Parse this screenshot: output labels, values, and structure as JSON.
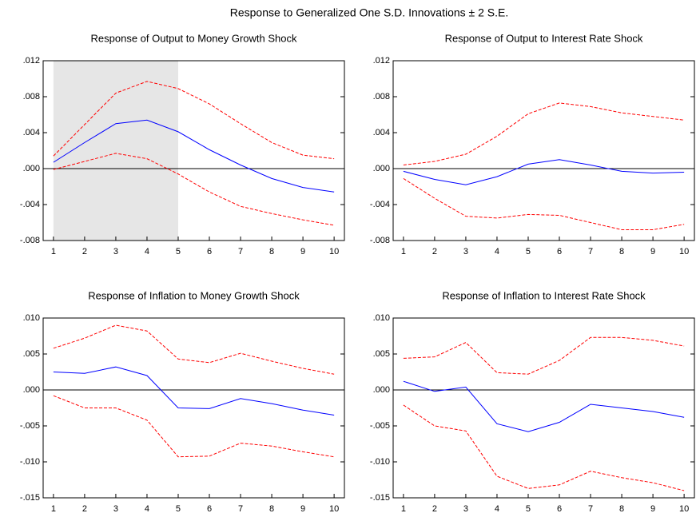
{
  "title": "Response to Generalized One S.D. Innovations ± 2 S.E.",
  "chart_data": [
    {
      "type": "line",
      "title": "Response of Output to Money Growth Shock",
      "x": [
        1,
        2,
        3,
        4,
        5,
        6,
        7,
        8,
        9,
        10
      ],
      "xlim": [
        0.67,
        10.33
      ],
      "xticks": [
        1,
        2,
        3,
        4,
        5,
        6,
        7,
        8,
        9,
        10
      ],
      "ylim": [
        -0.008,
        0.012
      ],
      "yticks": [
        {
          "value": -0.008,
          "label": "-.008"
        },
        {
          "value": -0.004,
          "label": "-.004"
        },
        {
          "value": 0,
          "label": ".000"
        },
        {
          "value": 0.004,
          "label": ".004"
        },
        {
          "value": 0.008,
          "label": ".008"
        },
        {
          "value": 0.012,
          "label": ".012"
        }
      ],
      "zero_line": true,
      "shaded_x": [
        1,
        5
      ],
      "shade_color": "#e6e6e6",
      "series": [
        {
          "color": "#0000ff",
          "style": "solid",
          "values": [
            0.0007,
            0.0029,
            0.005,
            0.0054,
            0.0041,
            0.0021,
            0.0004,
            -0.0011,
            -0.0021,
            -0.0026
          ]
        },
        {
          "color": "#ff0000",
          "style": "dashed",
          "values": [
            0.0014,
            0.0049,
            0.0084,
            0.0097,
            0.0089,
            0.0072,
            0.005,
            0.0029,
            0.0015,
            0.0011
          ]
        },
        {
          "color": "#ff0000",
          "style": "dashed",
          "values": [
            -0.0001,
            0.0008,
            0.0017,
            0.0011,
            -0.0006,
            -0.0026,
            -0.0042,
            -0.005,
            -0.0057,
            -0.0063
          ]
        }
      ]
    },
    {
      "type": "line",
      "title": "Response of Output to Interest Rate Shock",
      "x": [
        1,
        2,
        3,
        4,
        5,
        6,
        7,
        8,
        9,
        10
      ],
      "xlim": [
        0.67,
        10.33
      ],
      "xticks": [
        1,
        2,
        3,
        4,
        5,
        6,
        7,
        8,
        9,
        10
      ],
      "ylim": [
        -0.008,
        0.012
      ],
      "yticks": [
        {
          "value": -0.008,
          "label": "-.008"
        },
        {
          "value": -0.004,
          "label": "-.004"
        },
        {
          "value": 0,
          "label": ".000"
        },
        {
          "value": 0.004,
          "label": ".004"
        },
        {
          "value": 0.008,
          "label": ".008"
        },
        {
          "value": 0.012,
          "label": ".012"
        }
      ],
      "zero_line": true,
      "series": [
        {
          "color": "#0000ff",
          "style": "solid",
          "values": [
            -0.0003,
            -0.0012,
            -0.0018,
            -0.0009,
            0.0005,
            0.001,
            0.0004,
            -0.0003,
            -0.0005,
            -0.0004
          ]
        },
        {
          "color": "#ff0000",
          "style": "dashed",
          "values": [
            0.0004,
            0.0008,
            0.0016,
            0.0036,
            0.0061,
            0.0073,
            0.0069,
            0.0062,
            0.0058,
            0.0054
          ]
        },
        {
          "color": "#ff0000",
          "style": "dashed",
          "values": [
            -0.0011,
            -0.0033,
            -0.0053,
            -0.0055,
            -0.0051,
            -0.0052,
            -0.006,
            -0.0068,
            -0.0068,
            -0.0062
          ]
        }
      ]
    },
    {
      "type": "line",
      "title": "Response of Inflation to Money Growth Shock",
      "x": [
        1,
        2,
        3,
        4,
        5,
        6,
        7,
        8,
        9,
        10
      ],
      "xlim": [
        0.67,
        10.33
      ],
      "xticks": [
        1,
        2,
        3,
        4,
        5,
        6,
        7,
        8,
        9,
        10
      ],
      "ylim": [
        -0.015,
        0.01
      ],
      "yticks": [
        {
          "value": -0.015,
          "label": "-.015"
        },
        {
          "value": -0.01,
          "label": "-.010"
        },
        {
          "value": -0.005,
          "label": "-.005"
        },
        {
          "value": 0,
          "label": ".000"
        },
        {
          "value": 0.005,
          "label": ".005"
        },
        {
          "value": 0.01,
          "label": ".010"
        }
      ],
      "zero_line": true,
      "series": [
        {
          "color": "#0000ff",
          "style": "solid",
          "values": [
            0.0025,
            0.0023,
            0.0032,
            0.002,
            -0.0025,
            -0.0026,
            -0.0012,
            -0.0019,
            -0.0028,
            -0.0035
          ]
        },
        {
          "color": "#ff0000",
          "style": "dashed",
          "values": [
            0.0058,
            0.0072,
            0.009,
            0.0082,
            0.0043,
            0.0038,
            0.0051,
            0.004,
            0.003,
            0.0022
          ]
        },
        {
          "color": "#ff0000",
          "style": "dashed",
          "values": [
            -0.0008,
            -0.0025,
            -0.0025,
            -0.0042,
            -0.0093,
            -0.0092,
            -0.0074,
            -0.0078,
            -0.0086,
            -0.0093
          ]
        }
      ]
    },
    {
      "type": "line",
      "title": "Response of Inflation to Interest Rate Shock",
      "x": [
        1,
        2,
        3,
        4,
        5,
        6,
        7,
        8,
        9,
        10
      ],
      "xlim": [
        0.67,
        10.33
      ],
      "xticks": [
        1,
        2,
        3,
        4,
        5,
        6,
        7,
        8,
        9,
        10
      ],
      "ylim": [
        -0.015,
        0.01
      ],
      "yticks": [
        {
          "value": -0.015,
          "label": "-.015"
        },
        {
          "value": -0.01,
          "label": "-.010"
        },
        {
          "value": -0.005,
          "label": "-.005"
        },
        {
          "value": 0,
          "label": ".000"
        },
        {
          "value": 0.005,
          "label": ".005"
        },
        {
          "value": 0.01,
          "label": ".010"
        }
      ],
      "zero_line": true,
      "series": [
        {
          "color": "#0000ff",
          "style": "solid",
          "values": [
            0.0012,
            -0.0002,
            0.0004,
            -0.0047,
            -0.0058,
            -0.0045,
            -0.002,
            -0.0025,
            -0.003,
            -0.0038
          ]
        },
        {
          "color": "#ff0000",
          "style": "dashed",
          "values": [
            0.0044,
            0.0046,
            0.0066,
            0.0024,
            0.0022,
            0.0041,
            0.0073,
            0.0073,
            0.0069,
            0.0061
          ]
        },
        {
          "color": "#ff0000",
          "style": "dashed",
          "values": [
            -0.0021,
            -0.005,
            -0.0057,
            -0.012,
            -0.0137,
            -0.0132,
            -0.0113,
            -0.0122,
            -0.0129,
            -0.014
          ]
        }
      ]
    }
  ]
}
